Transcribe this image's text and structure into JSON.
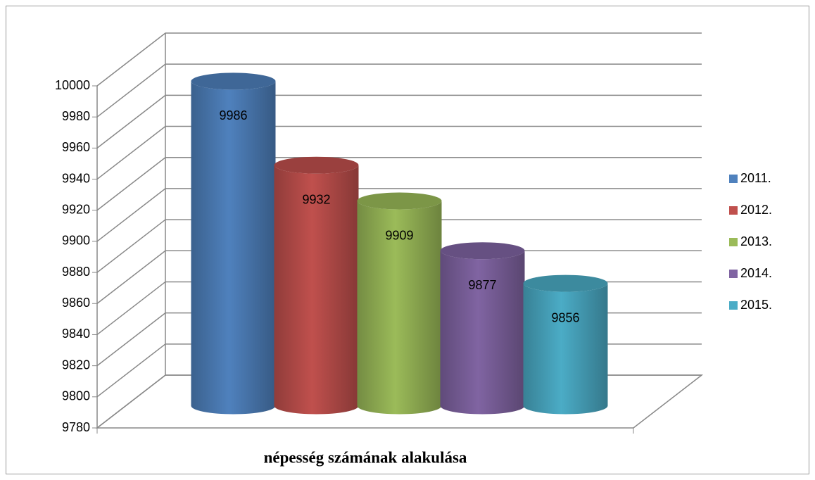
{
  "chart_data": {
    "type": "bar",
    "categories": [
      "népesség számának alakulása"
    ],
    "series": [
      {
        "name": "2011.",
        "color": "#4f81bd",
        "values": [
          9986
        ]
      },
      {
        "name": "2012.",
        "color": "#c0504d",
        "values": [
          9932
        ]
      },
      {
        "name": "2013.",
        "color": "#9bbb59",
        "values": [
          9909
        ]
      },
      {
        "name": "2014.",
        "color": "#8064a2",
        "values": [
          9877
        ]
      },
      {
        "name": "2015.",
        "color": "#4bacc6",
        "values": [
          9856
        ]
      }
    ],
    "ylim": [
      9780,
      10000
    ],
    "yticks": [
      9780,
      9800,
      9820,
      9840,
      9860,
      9880,
      9900,
      9920,
      9940,
      9960,
      9980,
      10000
    ],
    "grid": true,
    "legend": "right"
  }
}
